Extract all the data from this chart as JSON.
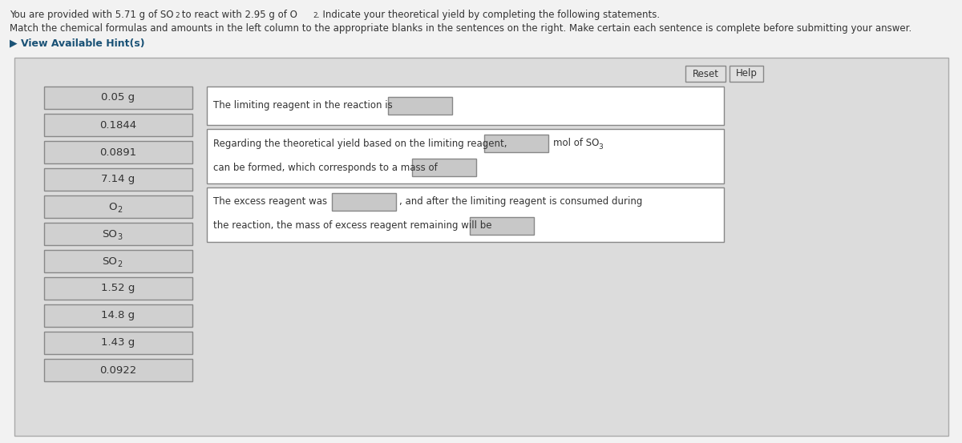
{
  "title_line1a": "You are provided with 5.71 g of SO",
  "title_line1a_sub": "2",
  "title_line1b": " to react with 2.95 g of O",
  "title_line1b_sub": "2",
  "title_line1c": ". Indicate your theoretical yield by completing the following statements.",
  "title_line2": "Match the chemical formulas and amounts in the left column to the appropriate blanks in the sentences on the right. Make certain each sentence is complete before submitting your answer.",
  "hint_text": "▶ View Available Hint(s)",
  "fig_bg": "#f2f2f2",
  "panel_bg": "#dcdcdc",
  "panel_border": "#aaaaaa",
  "left_items": [
    "0.05 g",
    "0.1844",
    "0.0891",
    "7.14 g",
    "O2",
    "SO3",
    "SO2",
    "1.52 g",
    "14.8 g",
    "1.43 g",
    "0.0922"
  ],
  "left_box_bg": "#d0d0d0",
  "left_box_border": "#888888",
  "sentence_box_bg": "#ffffff",
  "sentence_box_border": "#888888",
  "blank_bg": "#c8c8c8",
  "blank_border": "#888888",
  "reset_text": "Reset",
  "help_text": "Help",
  "btn_bg": "#e0e0e0",
  "btn_border": "#888888",
  "text_color": "#333333",
  "hint_color": "#1a5276",
  "sentence1": "The limiting reagent in the reaction is",
  "sentence2a": "Regarding the theoretical yield based on the limiting reagent,",
  "sentence2c": "can be formed, which corresponds to a mass of",
  "sentence3a": "The excess reagent was",
  "sentence3b": ", and after the limiting reagent is consumed during",
  "sentence3c": "the reaction, the mass of excess reagent remaining will be"
}
